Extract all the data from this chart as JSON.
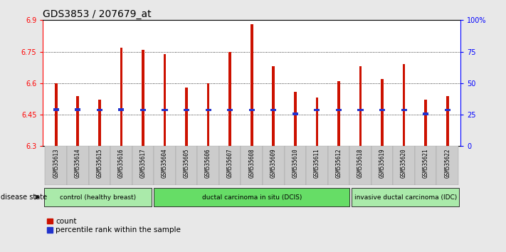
{
  "title": "GDS3853 / 207679_at",
  "samples": [
    "GSM535613",
    "GSM535614",
    "GSM535615",
    "GSM535616",
    "GSM535617",
    "GSM535604",
    "GSM535605",
    "GSM535606",
    "GSM535607",
    "GSM535608",
    "GSM535609",
    "GSM535610",
    "GSM535611",
    "GSM535612",
    "GSM535618",
    "GSM535619",
    "GSM535620",
    "GSM535621",
    "GSM535622"
  ],
  "red_values": [
    6.6,
    6.54,
    6.52,
    6.77,
    6.76,
    6.74,
    6.58,
    6.6,
    6.75,
    6.88,
    6.68,
    6.56,
    6.53,
    6.61,
    6.68,
    6.62,
    6.69,
    6.52,
    6.54
  ],
  "blue_values": [
    6.475,
    6.475,
    6.472,
    6.475,
    6.472,
    6.472,
    6.472,
    6.472,
    6.472,
    6.472,
    6.472,
    6.455,
    6.472,
    6.472,
    6.472,
    6.472,
    6.472,
    6.455,
    6.472
  ],
  "ymin": 6.3,
  "ymax": 6.9,
  "yticks": [
    6.3,
    6.45,
    6.6,
    6.75,
    6.9
  ],
  "y2ticks": [
    0,
    25,
    50,
    75,
    100
  ],
  "y2labels": [
    "0",
    "25",
    "50",
    "75",
    "100%"
  ],
  "groups": [
    {
      "label": "control (healthy breast)",
      "start": 0,
      "end": 5,
      "color": "#aaeaaa"
    },
    {
      "label": "ductal carcinoma in situ (DCIS)",
      "start": 5,
      "end": 14,
      "color": "#66dd66"
    },
    {
      "label": "invasive ductal carcinoma (IDC)",
      "start": 14,
      "end": 19,
      "color": "#aaeaaa"
    }
  ],
  "bar_color": "#cc1100",
  "blue_color": "#2233cc",
  "background_color": "#e8e8e8",
  "plot_bg": "#ffffff",
  "title_fontsize": 10,
  "tick_fontsize": 7,
  "label_fontsize": 7,
  "legend_label_red": "count",
  "legend_label_blue": "percentile rank within the sample"
}
